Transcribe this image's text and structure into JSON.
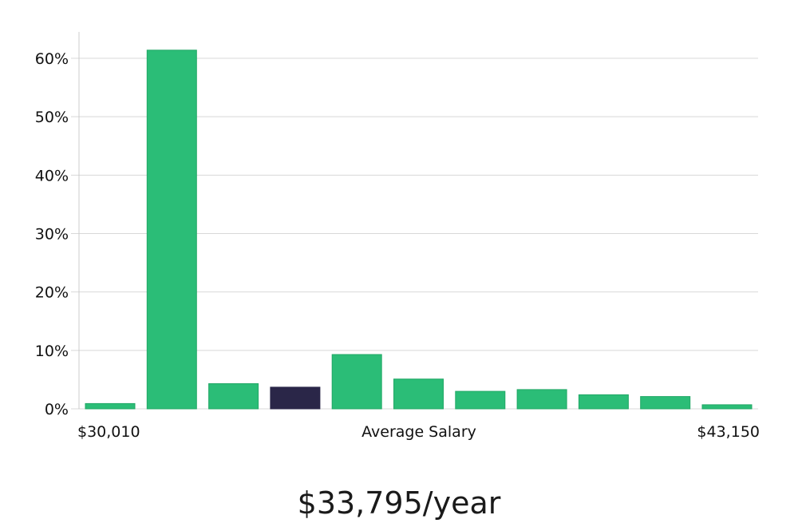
{
  "chart_data": {
    "type": "bar",
    "title": "",
    "xlabel": "Average Salary",
    "ylabel": "",
    "x_min_label": "$30,010",
    "x_max_label": "$43,150",
    "ylim": [
      0,
      64
    ],
    "y_ticks": [
      0,
      10,
      20,
      30,
      40,
      50,
      60
    ],
    "y_tick_labels": [
      "0%",
      "10%",
      "20%",
      "30%",
      "40%",
      "50%",
      "60%"
    ],
    "values": [
      0.9,
      61.4,
      4.3,
      3.7,
      9.3,
      5.1,
      3.0,
      3.3,
      2.4,
      2.1,
      0.7
    ],
    "highlight_index": 3,
    "colors": {
      "bar": "#2bbd77",
      "bar_border": "#22a866",
      "highlight": "#2a2648",
      "grid": "#d8d8d8",
      "axis": "#cccccc"
    }
  },
  "salary": {
    "average_label": "$33,795/year"
  }
}
